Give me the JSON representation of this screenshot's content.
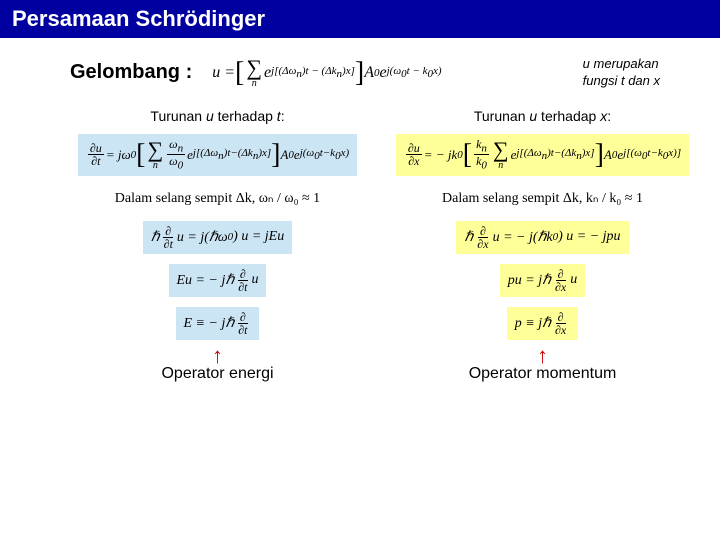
{
  "title": "Persamaan Schrödinger",
  "wave_label": "Gelombang :",
  "note_line1": "u merupakan",
  "note_line2": "fungsi t  dan x",
  "left": {
    "heading": "Turunan u terhadap t:",
    "narrow_text": "Dalam selang sempit Δk,  ωₙ / ω₀ ≈ 1",
    "operator_label": "Operator energi"
  },
  "right": {
    "heading": "Turunan u terhadap x:",
    "narrow_text": "Dalam selang sempit Δk,  kₙ / k₀ ≈ 1",
    "operator_label": "Operator momentum"
  },
  "colors": {
    "title_bg": "#0000a0",
    "title_fg": "#ffffff",
    "blue_box": "#cce5f5",
    "yellow_box": "#ffff99",
    "arrow": "#cc0000"
  }
}
